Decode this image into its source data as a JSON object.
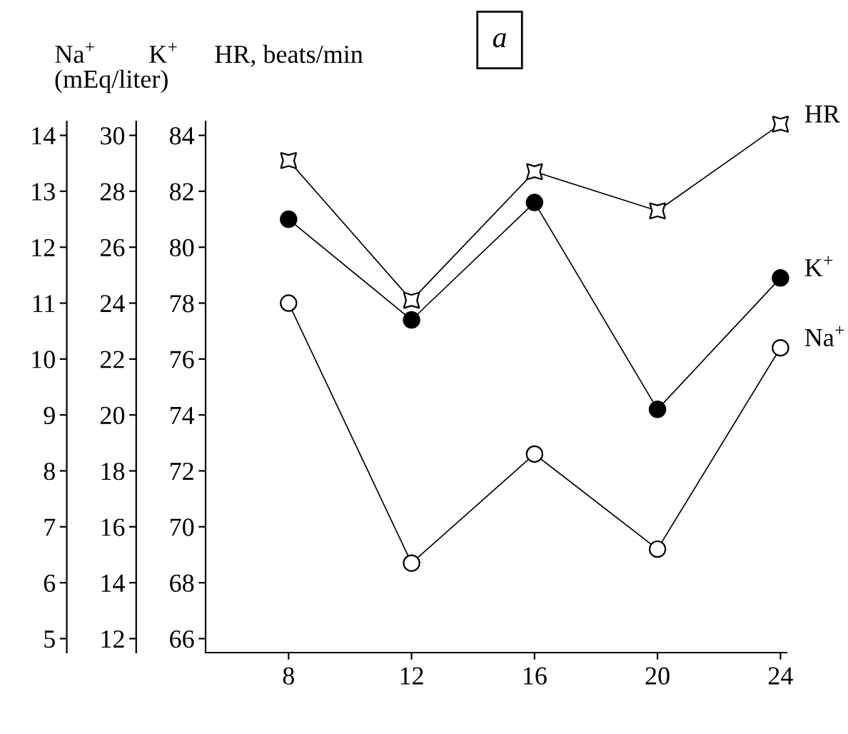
{
  "chart_data": {
    "type": "line",
    "title": "a",
    "ylabel": "Na$^{+}$",
    "y2label": "K$^{+}$",
    "y3label": "HR, beats/min",
    "annotations": [
      "(mEq/liter)"
    ],
    "x": [
      8,
      12,
      16,
      20,
      24
    ],
    "xlim": [
      5.3,
      24.2
    ],
    "xticks": [
      8,
      12,
      16,
      20,
      24
    ],
    "ylim": [
      4.75,
      14.25
    ],
    "yticks": [
      5,
      6,
      7,
      8,
      9,
      10,
      11,
      12,
      13,
      14
    ],
    "y2lim": [
      11.5,
      30.5
    ],
    "y2ticks": [
      12,
      14,
      16,
      18,
      20,
      22,
      24,
      26,
      28,
      30
    ],
    "y3lim": [
      65.5,
      84.5
    ],
    "y3ticks": [
      66,
      68,
      70,
      72,
      74,
      76,
      78,
      80,
      82,
      84
    ],
    "grid": false,
    "legend": false,
    "line_style": "solid",
    "series": [
      {
        "name": "HR",
        "axis": "y3",
        "color": "#000000",
        "marker": "star",
        "values": [
          83.1,
          78.1,
          82.7,
          81.3,
          84.4
        ]
      },
      {
        "name": "K$^{+}$",
        "axis": "y2",
        "color": "#000000",
        "marker": "circle",
        "values": [
          27.0,
          23.4,
          27.6,
          20.2,
          24.9
        ]
      },
      {
        "name": "Na$^{+}$",
        "axis": "y",
        "color": "#000000",
        "marker": "open circle",
        "values": [
          11.0,
          6.35,
          8.3,
          6.6,
          10.2
        ]
      }
    ]
  }
}
